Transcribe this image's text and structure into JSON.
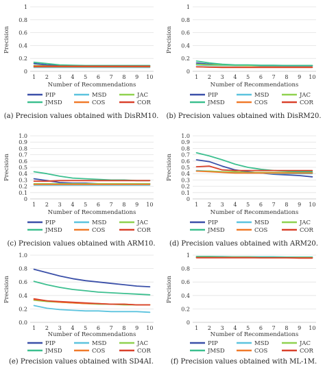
{
  "series_colors": {
    "PIP": "#3a4fa8",
    "MSD": "#5bc3de",
    "JAC": "#8fd14f",
    "JMSD": "#3cbf8f",
    "COS": "#f07a2a",
    "COR": "#d9412b"
  },
  "chart_data": [
    {
      "type": "line",
      "caption": "(a) Precision values obtained with DisRM10.",
      "xlabel": "Number of Recommendations",
      "ylabel": "Precision",
      "x": [
        1,
        2,
        3,
        4,
        5,
        6,
        7,
        8,
        9,
        10
      ],
      "ylim": [
        0,
        1
      ],
      "yticks": [
        "0",
        "0.2",
        "0.4",
        "0.6",
        "0.8",
        "1"
      ],
      "grid": true,
      "legend": "bottom",
      "series": [
        {
          "name": "PIP",
          "values": [
            0.12,
            0.1,
            0.09,
            0.085,
            0.085,
            0.085,
            0.085,
            0.085,
            0.085,
            0.085
          ]
        },
        {
          "name": "MSD",
          "values": [
            0.06,
            0.06,
            0.06,
            0.06,
            0.06,
            0.06,
            0.06,
            0.06,
            0.06,
            0.06
          ]
        },
        {
          "name": "JAC",
          "values": [
            0.09,
            0.085,
            0.08,
            0.08,
            0.08,
            0.08,
            0.08,
            0.08,
            0.08,
            0.08
          ]
        },
        {
          "name": "JMSD",
          "values": [
            0.14,
            0.12,
            0.1,
            0.095,
            0.09,
            0.09,
            0.09,
            0.09,
            0.09,
            0.09
          ]
        },
        {
          "name": "COS",
          "values": [
            0.07,
            0.07,
            0.07,
            0.07,
            0.07,
            0.07,
            0.07,
            0.07,
            0.07,
            0.07
          ]
        },
        {
          "name": "COR",
          "values": [
            0.08,
            0.08,
            0.08,
            0.08,
            0.08,
            0.08,
            0.08,
            0.08,
            0.08,
            0.08
          ]
        }
      ]
    },
    {
      "type": "line",
      "caption": "(b) Precision values obtained with DisRM20.",
      "xlabel": "Number of Recommendations",
      "ylabel": "Precision",
      "x": [
        1,
        2,
        3,
        4,
        5,
        6,
        7,
        8,
        9,
        10
      ],
      "ylim": [
        0,
        1
      ],
      "yticks": [
        "0",
        "0.2",
        "0.4",
        "0.6",
        "0.8",
        "1"
      ],
      "grid": true,
      "legend": "bottom",
      "series": [
        {
          "name": "PIP",
          "values": [
            0.13,
            0.11,
            0.1,
            0.09,
            0.09,
            0.085,
            0.085,
            0.085,
            0.085,
            0.085
          ]
        },
        {
          "name": "MSD",
          "values": [
            0.1,
            0.09,
            0.09,
            0.09,
            0.09,
            0.09,
            0.09,
            0.09,
            0.09,
            0.09
          ]
        },
        {
          "name": "JAC",
          "values": [
            0.11,
            0.1,
            0.1,
            0.095,
            0.09,
            0.09,
            0.09,
            0.09,
            0.09,
            0.09
          ]
        },
        {
          "name": "JMSD",
          "values": [
            0.16,
            0.13,
            0.11,
            0.1,
            0.1,
            0.095,
            0.095,
            0.09,
            0.09,
            0.09
          ]
        },
        {
          "name": "COS",
          "values": [
            0.07,
            0.065,
            0.065,
            0.065,
            0.065,
            0.065,
            0.065,
            0.065,
            0.065,
            0.065
          ]
        },
        {
          "name": "COR",
          "values": [
            0.07,
            0.065,
            0.06,
            0.06,
            0.06,
            0.06,
            0.06,
            0.06,
            0.06,
            0.06
          ]
        }
      ]
    },
    {
      "type": "line",
      "caption": "(c) Precision values obtained with ARM10.",
      "xlabel": "Number of Recommendations",
      "ylabel": "Precision",
      "x": [
        1,
        2,
        3,
        4,
        5,
        6,
        7,
        8,
        9,
        10
      ],
      "ylim": [
        0,
        1
      ],
      "yticks": [
        "0",
        "0.1",
        "0.2",
        "0.3",
        "0.4",
        "0.5",
        "0.6",
        "0.7",
        "0.8",
        "0.9",
        "1.0"
      ],
      "grid": true,
      "legend": "bottom",
      "series": [
        {
          "name": "PIP",
          "values": [
            0.32,
            0.29,
            0.26,
            0.25,
            0.25,
            0.24,
            0.24,
            0.24,
            0.24,
            0.24
          ]
        },
        {
          "name": "MSD",
          "values": [
            0.22,
            0.22,
            0.22,
            0.22,
            0.22,
            0.22,
            0.22,
            0.22,
            0.22,
            0.22
          ]
        },
        {
          "name": "JAC",
          "values": [
            0.24,
            0.24,
            0.24,
            0.24,
            0.24,
            0.24,
            0.24,
            0.24,
            0.24,
            0.24
          ]
        },
        {
          "name": "JMSD",
          "values": [
            0.43,
            0.4,
            0.36,
            0.33,
            0.32,
            0.31,
            0.3,
            0.3,
            0.29,
            0.29
          ]
        },
        {
          "name": "COS",
          "values": [
            0.23,
            0.23,
            0.23,
            0.23,
            0.23,
            0.23,
            0.23,
            0.23,
            0.23,
            0.23
          ]
        },
        {
          "name": "COR",
          "values": [
            0.28,
            0.28,
            0.29,
            0.29,
            0.29,
            0.29,
            0.29,
            0.29,
            0.29,
            0.29
          ]
        }
      ]
    },
    {
      "type": "line",
      "caption": "(d) Precision values obtained with ARM20.",
      "xlabel": "Number of Recommendations",
      "ylabel": "Precision",
      "x": [
        1,
        2,
        3,
        4,
        5,
        6,
        7,
        8,
        9,
        10
      ],
      "ylim": [
        0,
        1
      ],
      "yticks": [
        "0",
        "0.1",
        "0.2",
        "0.3",
        "0.4",
        "0.5",
        "0.6",
        "0.7",
        "0.8",
        "0.9",
        "1.0"
      ],
      "grid": true,
      "legend": "bottom",
      "series": [
        {
          "name": "PIP",
          "values": [
            0.62,
            0.59,
            0.52,
            0.46,
            0.43,
            0.41,
            0.39,
            0.38,
            0.37,
            0.35
          ]
        },
        {
          "name": "MSD",
          "values": [
            0.45,
            0.44,
            0.43,
            0.42,
            0.41,
            0.41,
            0.4,
            0.4,
            0.4,
            0.4
          ]
        },
        {
          "name": "JAC",
          "values": [
            0.44,
            0.44,
            0.43,
            0.43,
            0.42,
            0.42,
            0.42,
            0.42,
            0.42,
            0.42
          ]
        },
        {
          "name": "JMSD",
          "values": [
            0.73,
            0.68,
            0.62,
            0.55,
            0.5,
            0.47,
            0.45,
            0.44,
            0.43,
            0.43
          ]
        },
        {
          "name": "COS",
          "values": [
            0.44,
            0.43,
            0.42,
            0.41,
            0.41,
            0.41,
            0.41,
            0.41,
            0.41,
            0.41
          ]
        },
        {
          "name": "COR",
          "values": [
            0.51,
            0.52,
            0.46,
            0.45,
            0.45,
            0.45,
            0.45,
            0.45,
            0.45,
            0.45
          ]
        }
      ]
    },
    {
      "type": "line",
      "caption": "(e) Precision values obtained with SD4AI.",
      "xlabel": "Number of Recommendations",
      "ylabel": "Precision",
      "x": [
        1,
        2,
        3,
        4,
        5,
        6,
        7,
        8,
        9,
        10
      ],
      "ylim": [
        0,
        1
      ],
      "yticks": [
        "0.0",
        "0.2",
        "0.4",
        "0.6",
        "0.8",
        "1.0"
      ],
      "grid": true,
      "legend": "bottom",
      "series": [
        {
          "name": "PIP",
          "values": [
            0.79,
            0.74,
            0.69,
            0.65,
            0.62,
            0.6,
            0.58,
            0.56,
            0.54,
            0.53
          ]
        },
        {
          "name": "MSD",
          "values": [
            0.25,
            0.21,
            0.19,
            0.18,
            0.17,
            0.17,
            0.16,
            0.16,
            0.16,
            0.15
          ]
        },
        {
          "name": "JAC",
          "values": [
            0.33,
            0.31,
            0.3,
            0.29,
            0.28,
            0.27,
            0.27,
            0.26,
            0.26,
            0.26
          ]
        },
        {
          "name": "JMSD",
          "values": [
            0.61,
            0.56,
            0.52,
            0.49,
            0.47,
            0.45,
            0.44,
            0.43,
            0.42,
            0.41
          ]
        },
        {
          "name": "COS",
          "values": [
            0.34,
            0.32,
            0.3,
            0.29,
            0.28,
            0.28,
            0.27,
            0.27,
            0.26,
            0.26
          ]
        },
        {
          "name": "COR",
          "values": [
            0.35,
            0.32,
            0.31,
            0.3,
            0.29,
            0.28,
            0.27,
            0.27,
            0.26,
            0.26
          ]
        }
      ]
    },
    {
      "type": "line",
      "caption": "(f) Precision values obtained with ML-1M.",
      "xlabel": "Number of Recommendations",
      "ylabel": "Precision",
      "x": [
        1,
        2,
        3,
        4,
        5,
        6,
        7,
        8,
        9,
        10
      ],
      "ylim": [
        0,
        1
      ],
      "yticks": [
        "0",
        "0.2",
        "0.4",
        "0.6",
        "0.8",
        "1"
      ],
      "grid": true,
      "legend": "bottom",
      "series": [
        {
          "name": "PIP",
          "values": [
            0.97,
            0.97,
            0.97,
            0.97,
            0.97,
            0.97,
            0.97,
            0.97,
            0.965,
            0.965
          ]
        },
        {
          "name": "MSD",
          "values": [
            0.98,
            0.98,
            0.98,
            0.975,
            0.975,
            0.975,
            0.975,
            0.97,
            0.97,
            0.97
          ]
        },
        {
          "name": "JAC",
          "values": [
            0.97,
            0.97,
            0.97,
            0.97,
            0.97,
            0.97,
            0.965,
            0.965,
            0.965,
            0.965
          ]
        },
        {
          "name": "JMSD",
          "values": [
            0.98,
            0.98,
            0.975,
            0.975,
            0.975,
            0.97,
            0.97,
            0.97,
            0.97,
            0.97
          ]
        },
        {
          "name": "COS",
          "values": [
            0.965,
            0.965,
            0.965,
            0.965,
            0.965,
            0.96,
            0.96,
            0.96,
            0.96,
            0.96
          ]
        },
        {
          "name": "COR",
          "values": [
            0.96,
            0.96,
            0.96,
            0.96,
            0.96,
            0.96,
            0.96,
            0.96,
            0.955,
            0.955
          ]
        }
      ]
    }
  ]
}
